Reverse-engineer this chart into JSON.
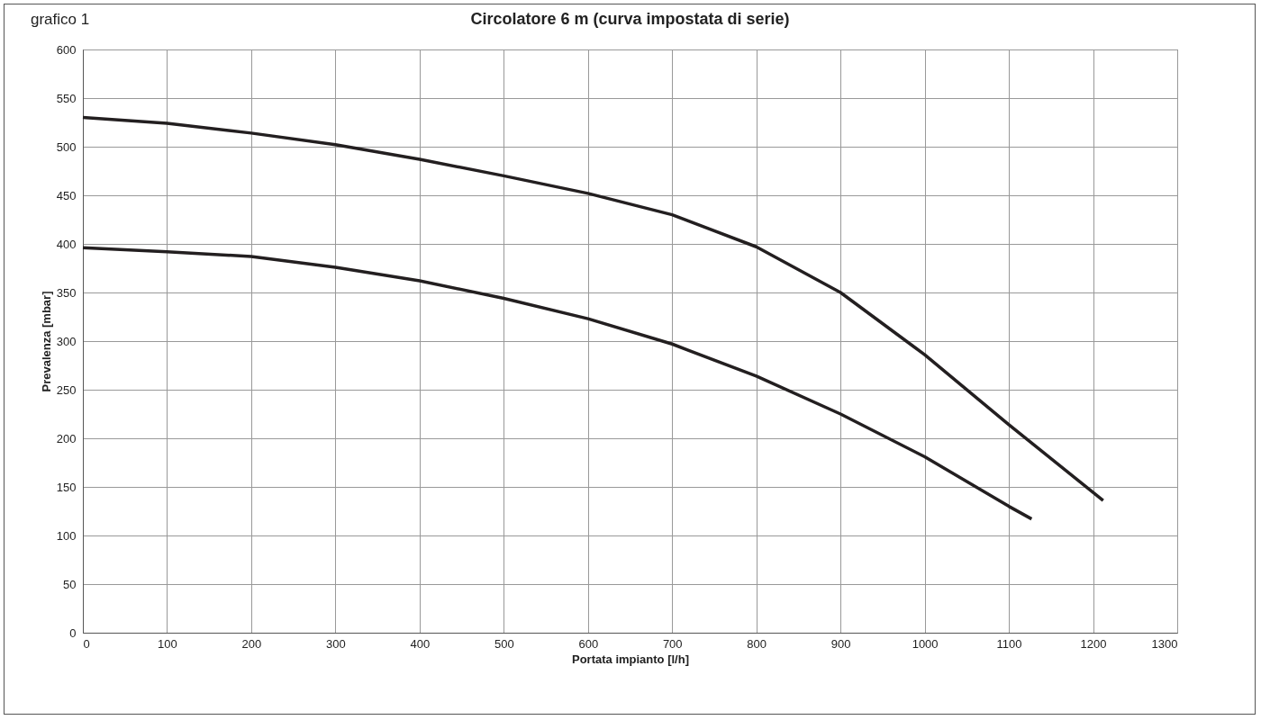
{
  "chart_data": {
    "type": "line",
    "title": "Circolatore 6 m (curva impostata di serie)",
    "annotations": [
      "grafico 1"
    ],
    "xlabel": "Portata impianto [l/h]",
    "ylabel": "Prevalenza [mbar]",
    "xlim": [
      0,
      1300
    ],
    "xticks": [
      0,
      100,
      200,
      300,
      400,
      500,
      600,
      700,
      800,
      900,
      1000,
      1100,
      1200,
      1300
    ],
    "ylim": [
      0,
      600
    ],
    "yticks": [
      0,
      50,
      100,
      150,
      200,
      250,
      300,
      350,
      400,
      450,
      500,
      550,
      600
    ],
    "grid": true,
    "marker": "none",
    "line_style": "solid",
    "series": [
      {
        "color": "#231f20",
        "x": [
          0,
          100,
          200,
          300,
          400,
          500,
          600,
          700,
          800,
          900,
          1000,
          1100,
          1212
        ],
        "values": [
          530,
          524,
          514,
          502,
          487,
          470,
          452,
          430,
          397,
          350,
          286,
          214,
          136
        ]
      },
      {
        "color": "#231f20",
        "x": [
          0,
          100,
          200,
          300,
          400,
          500,
          600,
          700,
          800,
          900,
          1000,
          1100,
          1127
        ],
        "values": [
          396,
          392,
          387,
          376,
          362,
          344,
          323,
          297,
          264,
          225,
          181,
          130,
          117
        ]
      }
    ]
  }
}
